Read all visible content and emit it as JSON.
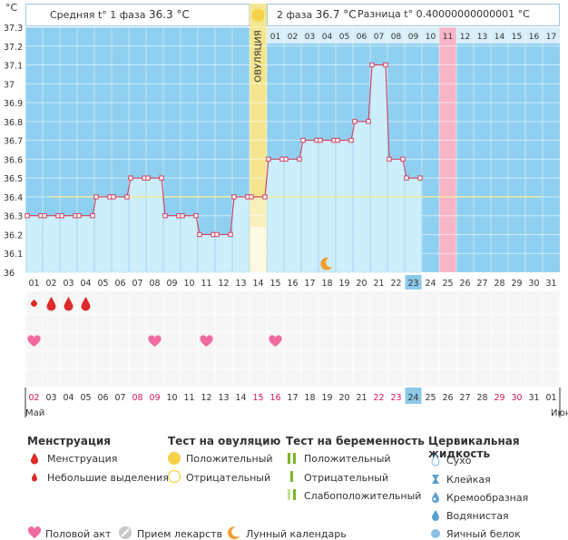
{
  "header": {
    "unit": "°C",
    "phase1_label": "Средняя t° 1 фаза",
    "phase1_value": "36.3 °C",
    "phase2_label": "2 фаза",
    "phase2_value": "36.7 °C",
    "diff_label": "Разница t°",
    "diff_value": "0.40000000000001 °C"
  },
  "ovulation_label": "ОВУЛЯЦИЯ",
  "chart_data": {
    "type": "line",
    "title": "",
    "ylabel": "°C",
    "ylim": [
      36,
      37.3
    ],
    "yticks": [
      "36",
      "36.1",
      "36.2",
      "36.3",
      "36.4",
      "36.5",
      "36.6",
      "36.7",
      "36.8",
      "36.9",
      "37",
      "37.1",
      "37.2",
      "37.3"
    ],
    "cycle_days": [
      "01",
      "02",
      "03",
      "04",
      "05",
      "06",
      "07",
      "08",
      "09",
      "10",
      "11",
      "12",
      "13",
      "14",
      "15",
      "16",
      "17",
      "18",
      "19",
      "20",
      "21",
      "22",
      "23",
      "24",
      "25",
      "26",
      "27",
      "28",
      "29",
      "30",
      "31"
    ],
    "temperatures": [
      36.3,
      36.3,
      36.3,
      36.3,
      36.4,
      36.4,
      36.5,
      36.5,
      36.3,
      36.3,
      36.2,
      36.2,
      36.4,
      36.4,
      36.6,
      36.6,
      36.7,
      36.7,
      36.7,
      36.8,
      37.1,
      36.6,
      36.5
    ],
    "average_line": 36.4,
    "ovulation_day": 14,
    "luteal_days": [
      "01",
      "02",
      "03",
      "04",
      "05",
      "06",
      "07",
      "08",
      "09",
      "10",
      "11",
      "12",
      "13",
      "14",
      "15",
      "16",
      "17"
    ],
    "expected_period_day": 25,
    "current_day": 23,
    "lunar_day": 18,
    "menstruation_days": [
      1,
      2,
      3,
      4
    ],
    "spotting_days": [
      1
    ],
    "intercourse_days": [
      1,
      8,
      11,
      15
    ],
    "calendar_dates": [
      "02",
      "03",
      "04",
      "05",
      "06",
      "07",
      "08",
      "09",
      "10",
      "11",
      "12",
      "13",
      "14",
      "15",
      "16",
      "17",
      "18",
      "19",
      "20",
      "21",
      "22",
      "23",
      "24",
      "25",
      "26",
      "27",
      "28",
      "29",
      "30",
      "31",
      "01"
    ],
    "weekend_dates": [
      "02",
      "08",
      "09",
      "15",
      "16",
      "22",
      "23",
      "29",
      "30"
    ],
    "month_start": "Май",
    "month_end": "Июн"
  },
  "legend": {
    "menstruation_title": "Менструация",
    "menstruation": "Менструация",
    "spotting": "Небольшие выделения",
    "ovulation_test_title": "Тест на овуляцию",
    "positive": "Положительный",
    "negative": "Отрицательный",
    "pregnancy_test_title": "Тест на беременность",
    "preg_positive": "Положительный",
    "preg_negative": "Отрицательный",
    "preg_weak": "Слабоположительный",
    "cervical_title": "Цервикальная жидкость",
    "dry": "Сухо",
    "sticky": "Клейкая",
    "creamy": "Кремообразная",
    "watery": "Водянистая",
    "eggwhite": "Яичный белок",
    "intercourse": "Половой акт",
    "medication": "Прием лекарств",
    "lunar": "Лунный календарь"
  },
  "colors": {
    "sky": "#8fd0f0",
    "bar": "#cdeefb",
    "line": "#d24060",
    "ovulation": "#f5e590",
    "period": "#f7b5c8",
    "avg": "#f0ea9a",
    "today": "#8cc8e8",
    "weekend": "#d2185a",
    "red": "#dd2a2a",
    "heart": "#f06aa0",
    "moon": "#f0a030",
    "green": "#7ab628"
  }
}
